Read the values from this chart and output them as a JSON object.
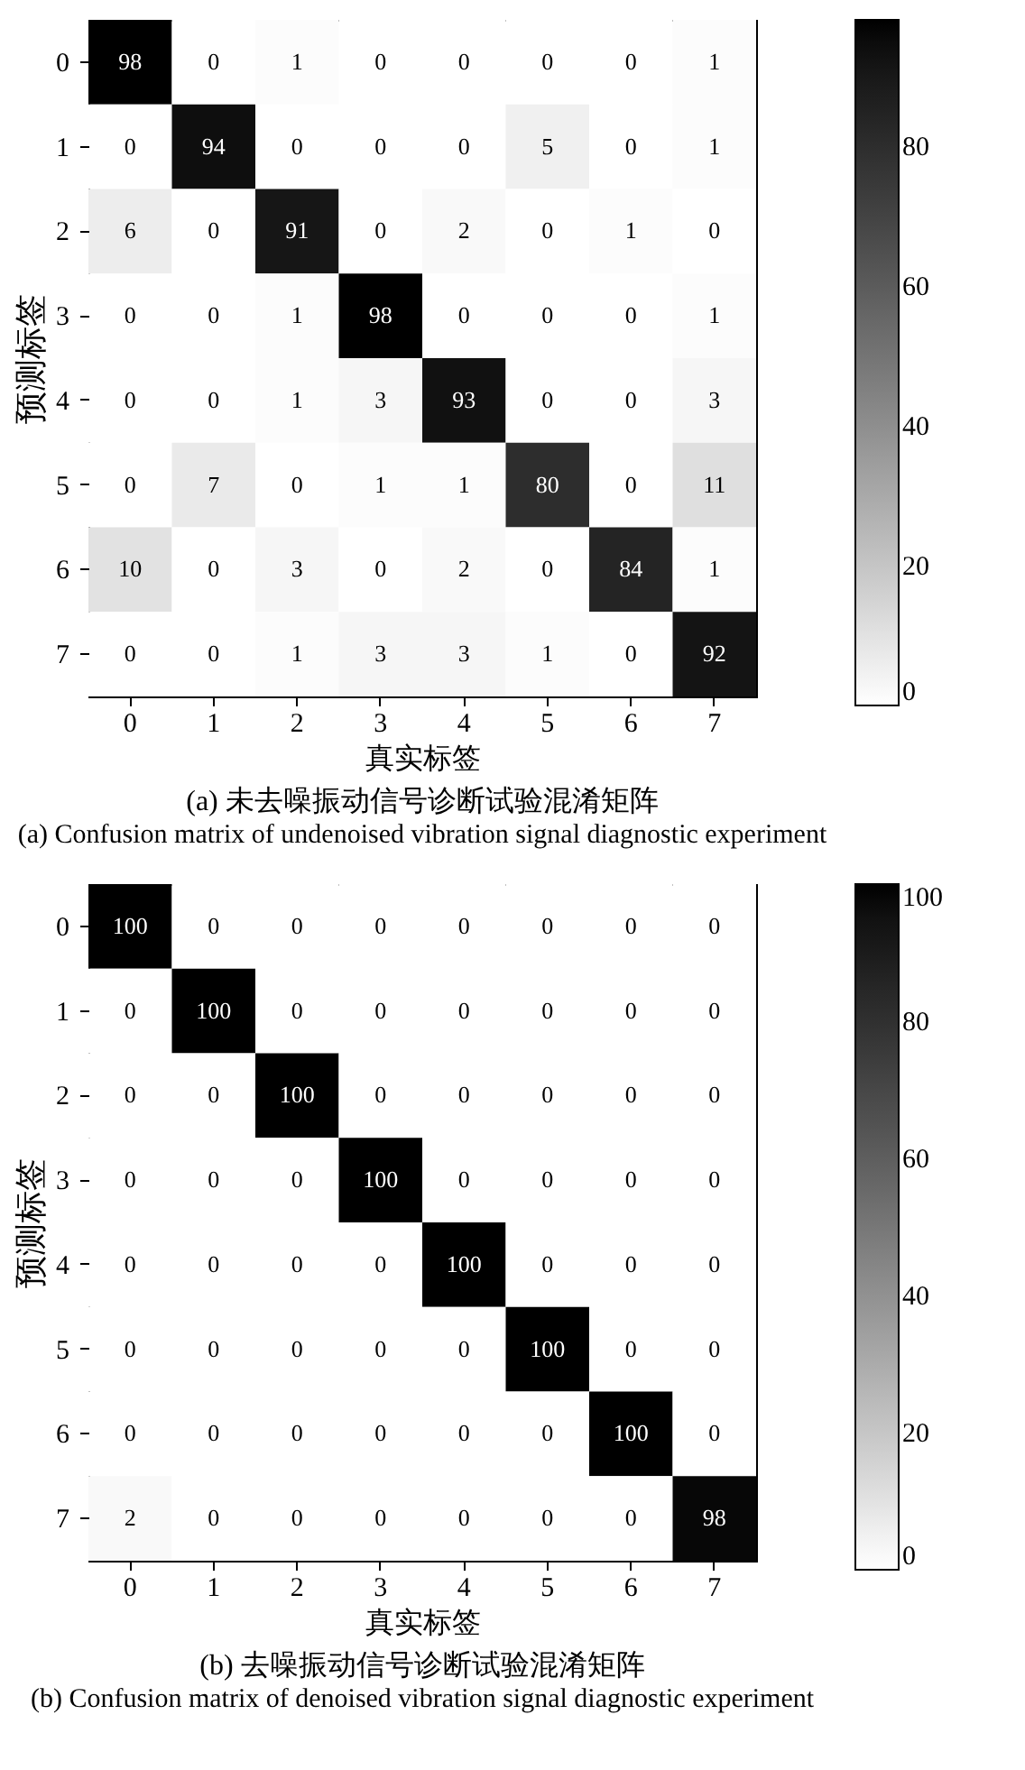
{
  "chart_data": [
    {
      "type": "heatmap",
      "title": "(a) 未去噪振动信号诊断试验混淆矩阵",
      "subtitle": "(a) Confusion matrix of undenoised vibration signal diagnostic experiment",
      "xlabel": "真实标签",
      "ylabel": "预测标签",
      "categories": [
        "0",
        "1",
        "2",
        "3",
        "4",
        "5",
        "6",
        "7"
      ],
      "y_categories": [
        "0",
        "1",
        "2",
        "3",
        "4",
        "5",
        "6",
        "7"
      ],
      "cells": [
        [
          98,
          0,
          1,
          0,
          0,
          0,
          0,
          1
        ],
        [
          0,
          94,
          0,
          0,
          0,
          5,
          0,
          1
        ],
        [
          6,
          0,
          91,
          0,
          2,
          0,
          1,
          0
        ],
        [
          0,
          0,
          1,
          98,
          0,
          0,
          0,
          1
        ],
        [
          0,
          0,
          1,
          3,
          93,
          0,
          0,
          3
        ],
        [
          0,
          7,
          0,
          1,
          1,
          80,
          0,
          11
        ],
        [
          10,
          0,
          3,
          0,
          2,
          0,
          84,
          1
        ],
        [
          0,
          0,
          1,
          3,
          3,
          1,
          0,
          92
        ]
      ],
      "clim": [
        0,
        98
      ],
      "cticks": [
        0,
        20,
        40,
        60,
        80
      ],
      "data_labels": true
    },
    {
      "type": "heatmap",
      "title": "(b) 去噪振动信号诊断试验混淆矩阵",
      "subtitle": "(b) Confusion matrix of denoised vibration signal diagnostic experiment",
      "xlabel": "真实标签",
      "ylabel": "预测标签",
      "categories": [
        "0",
        "1",
        "2",
        "3",
        "4",
        "5",
        "6",
        "7"
      ],
      "y_categories": [
        "0",
        "1",
        "2",
        "3",
        "4",
        "5",
        "6",
        "7"
      ],
      "cells": [
        [
          100,
          0,
          0,
          0,
          0,
          0,
          0,
          0
        ],
        [
          0,
          100,
          0,
          0,
          0,
          0,
          0,
          0
        ],
        [
          0,
          0,
          100,
          0,
          0,
          0,
          0,
          0
        ],
        [
          0,
          0,
          0,
          100,
          0,
          0,
          0,
          0
        ],
        [
          0,
          0,
          0,
          0,
          100,
          0,
          0,
          0
        ],
        [
          0,
          0,
          0,
          0,
          0,
          100,
          0,
          0
        ],
        [
          0,
          0,
          0,
          0,
          0,
          0,
          100,
          0
        ],
        [
          2,
          0,
          0,
          0,
          0,
          0,
          0,
          98
        ]
      ],
      "clim": [
        0,
        100
      ],
      "cticks": [
        0,
        20,
        40,
        60,
        80,
        100
      ],
      "data_labels": true
    }
  ]
}
